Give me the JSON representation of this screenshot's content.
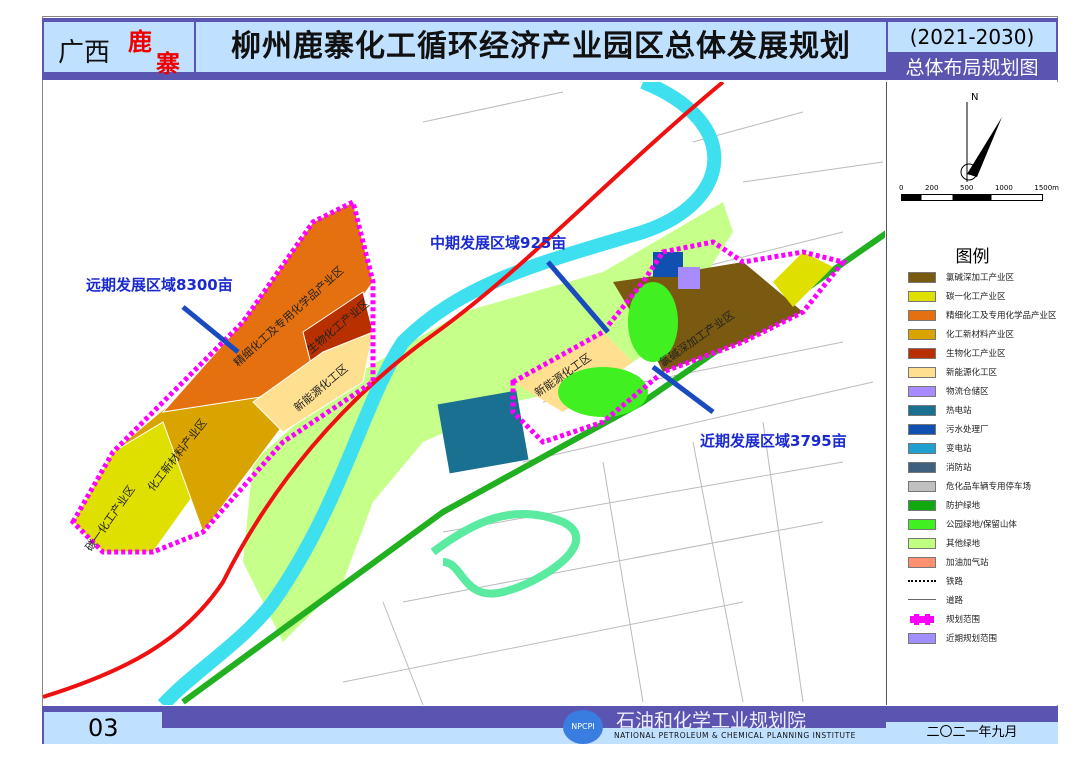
{
  "header": {
    "region": "广西",
    "county_char1": "鹿",
    "county_char2": "寨",
    "title": "柳州鹿寨化工循环经济产业园区总体发展规划",
    "years": "(2021-2030)",
    "subtitle": "总体布局规划图"
  },
  "map": {
    "annotations": {
      "far": "远期发展区域8300亩",
      "mid": "中期发展区域925亩",
      "near": "近期发展区域3795亩"
    },
    "zones": {
      "fine_chem": "精细化工及专用化学品产业区",
      "bio": "生物化工产业区",
      "new_energy_west": "新能源化工区",
      "new_material": "化工新材料产业区",
      "c1": "碳一化工产业区",
      "new_energy_east": "新能源化工区",
      "chlor": "氯碱深加工产业区"
    },
    "north": "N",
    "scale": [
      "0",
      "200",
      "500",
      "1000",
      "1500m"
    ]
  },
  "legend": {
    "title": "图例",
    "items": [
      {
        "label": "氯碱深加工产业区",
        "color": "#7a5a10"
      },
      {
        "label": "碳一化工产业区",
        "color": "#e0e000"
      },
      {
        "label": "精细化工及专用化学品产业区",
        "color": "#e57010"
      },
      {
        "label": "化工新材料产业区",
        "color": "#d9a400"
      },
      {
        "label": "生物化工产业区",
        "color": "#b83000"
      },
      {
        "label": "新能源化工区",
        "color": "#ffe090"
      },
      {
        "label": "物流仓储区",
        "color": "#a88cff"
      },
      {
        "label": "热电站",
        "color": "#1a7090"
      },
      {
        "label": "污水处理厂",
        "color": "#1050b0"
      },
      {
        "label": "变电站",
        "color": "#20a0d0"
      },
      {
        "label": "消防站",
        "color": "#406080"
      },
      {
        "label": "危化品车辆专用停车场",
        "color": "#c0c0c0"
      },
      {
        "label": "防护绿地",
        "color": "#10aa10"
      },
      {
        "label": "公园绿地/保留山体",
        "color": "#40f020"
      },
      {
        "label": "其他绿地",
        "color": "#c0ff80"
      },
      {
        "label": "加油加气站",
        "color": "#ff9070"
      },
      {
        "label": "铁路",
        "color": ""
      },
      {
        "label": "道路",
        "color": ""
      },
      {
        "label": "规划范围",
        "color": "#ff00ff"
      },
      {
        "label": "近期规划范围",
        "color": "#a090ff"
      }
    ]
  },
  "footer": {
    "page": "03",
    "org": "石油和化学工业规划院",
    "org_en": "NATIONAL PETROLEUM & CHEMICAL PLANNING INSTITUTE",
    "logo": "NPCPI",
    "date": "二〇二一年九月"
  }
}
